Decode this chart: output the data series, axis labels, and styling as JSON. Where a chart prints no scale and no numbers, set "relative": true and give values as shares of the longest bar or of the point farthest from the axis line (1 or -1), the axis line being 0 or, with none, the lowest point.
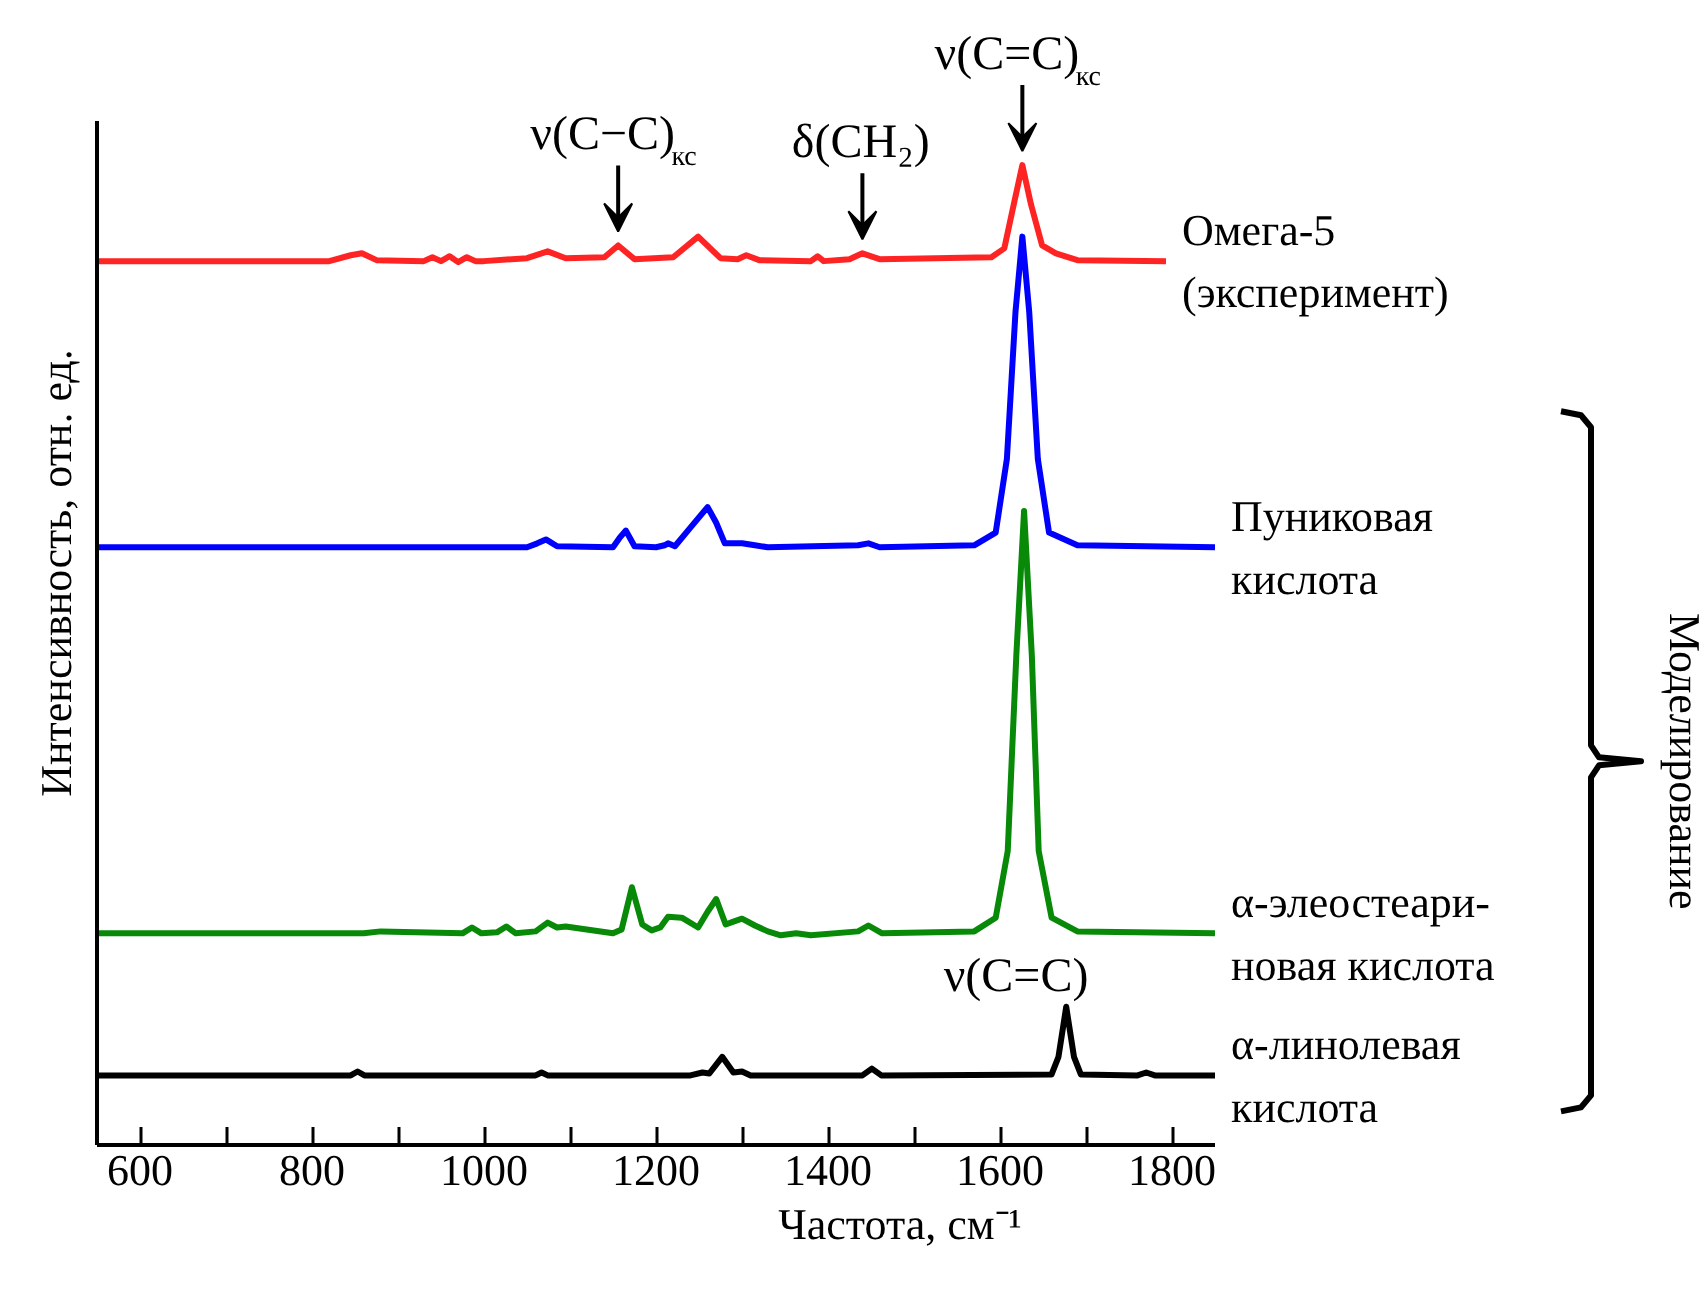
{
  "chart_data": {
    "type": "line",
    "relative": true,
    "xlabel": "Частота, см⁻¹",
    "ylabel": "Интенсивность, отн. ед.",
    "xlim": [
      550,
      1850
    ],
    "xticks": [
      600,
      {
        "value": 700,
        "label": null
      },
      800,
      {
        "value": 900,
        "label": null
      },
      1000,
      {
        "value": 1100,
        "label": null
      },
      1200,
      {
        "value": 1300,
        "label": null
      },
      1400,
      {
        "value": 1500,
        "label": null
      },
      1600,
      {
        "value": 1700,
        "label": null
      },
      1800
    ],
    "grid": false,
    "marker": "none",
    "line_style": "solid",
    "annotations": [
      {
        "text": "ν(C−C)$_{кс}$",
        "x": 1156,
        "y": 0.918
      },
      {
        "text": "δ(CH₂)",
        "x": 1440,
        "y": 0.91
      },
      {
        "text": "ν(C=C)$_{кс}$",
        "x": 1626,
        "y": 1.0
      },
      {
        "text": "ν(C=C)",
        "x": 1677,
        "y": 0.141
      },
      "Моделирование"
    ],
    "series": [
      {
        "name": "Омега-5\n(эксперимент)",
        "color": "#ff2424",
        "x": [
          550,
          820,
          845,
          858,
          875,
          930,
          940,
          950,
          960,
          970,
          980,
          990,
          1000,
          1050,
          1074,
          1095,
          1140,
          1156,
          1175,
          1220,
          1249,
          1275,
          1295,
          1305,
          1320,
          1380,
          1388,
          1395,
          1425,
          1440,
          1460,
          1590,
          1605,
          1616,
          1626,
          1636,
          1649,
          1665,
          1690,
          1793
        ],
        "values": [
          0.902,
          0.902,
          0.908,
          0.91,
          0.903,
          0.902,
          0.906,
          0.902,
          0.907,
          0.901,
          0.906,
          0.902,
          0.902,
          0.905,
          0.912,
          0.905,
          0.906,
          0.918,
          0.904,
          0.906,
          0.927,
          0.905,
          0.904,
          0.908,
          0.903,
          0.902,
          0.907,
          0.902,
          0.904,
          0.91,
          0.904,
          0.906,
          0.915,
          0.96,
          1.0,
          0.96,
          0.918,
          0.91,
          0.903,
          0.902
        ]
      },
      {
        "name": "Пуниковая\nкислота",
        "color": "#0000ff",
        "x": [
          550,
          1050,
          1062,
          1072,
          1085,
          1150,
          1158,
          1165,
          1175,
          1200,
          1210,
          1214,
          1222,
          1240,
          1260,
          1270,
          1280,
          1300,
          1315,
          1330,
          1435,
          1447,
          1460,
          1570,
          1595,
          1608,
          1618,
          1626,
          1634,
          1644,
          1657,
          1690,
          1850
        ],
        "values": [
          0.61,
          0.61,
          0.614,
          0.618,
          0.611,
          0.61,
          0.62,
          0.627,
          0.611,
          0.61,
          0.612,
          0.614,
          0.611,
          0.63,
          0.651,
          0.635,
          0.614,
          0.614,
          0.612,
          0.61,
          0.612,
          0.614,
          0.61,
          0.612,
          0.625,
          0.7,
          0.85,
          0.927,
          0.85,
          0.7,
          0.625,
          0.612,
          0.61
        ]
      },
      {
        "name": "α-элеостеари-\nновая кислота",
        "color": "#088a08",
        "x": [
          550,
          860,
          880,
          975,
          986,
          997,
          1015,
          1026,
          1037,
          1060,
          1074,
          1085,
          1095,
          1150,
          1160,
          1172,
          1184,
          1195,
          1205,
          1214,
          1230,
          1249,
          1260,
          1270,
          1281,
          1290,
          1300,
          1315,
          1330,
          1345,
          1363,
          1380,
          1435,
          1447,
          1463,
          1570,
          1595,
          1609,
          1619,
          1628,
          1637,
          1645,
          1660,
          1690,
          1850
        ],
        "values": [
          0.216,
          0.216,
          0.218,
          0.216,
          0.222,
          0.216,
          0.217,
          0.223,
          0.216,
          0.218,
          0.227,
          0.222,
          0.223,
          0.216,
          0.22,
          0.263,
          0.225,
          0.219,
          0.222,
          0.233,
          0.232,
          0.222,
          0.238,
          0.251,
          0.225,
          0.228,
          0.231,
          0.224,
          0.218,
          0.214,
          0.216,
          0.214,
          0.218,
          0.224,
          0.216,
          0.218,
          0.232,
          0.3,
          0.5,
          0.647,
          0.5,
          0.3,
          0.232,
          0.218,
          0.216
        ]
      },
      {
        "name": "α-линолевая\nкислота",
        "color": "#000000",
        "x": [
          550,
          845,
          853,
          861,
          1060,
          1067,
          1074,
          1240,
          1254,
          1262,
          1277,
          1290,
          1300,
          1310,
          1440,
          1451,
          1462,
          1660,
          1668,
          1677,
          1686,
          1694,
          1760,
          1770,
          1780,
          1850
        ],
        "values": [
          0.071,
          0.071,
          0.075,
          0.071,
          0.071,
          0.074,
          0.071,
          0.071,
          0.074,
          0.073,
          0.09,
          0.074,
          0.075,
          0.071,
          0.071,
          0.078,
          0.071,
          0.072,
          0.09,
          0.141,
          0.09,
          0.072,
          0.071,
          0.074,
          0.071,
          0.071
        ]
      }
    ]
  }
}
